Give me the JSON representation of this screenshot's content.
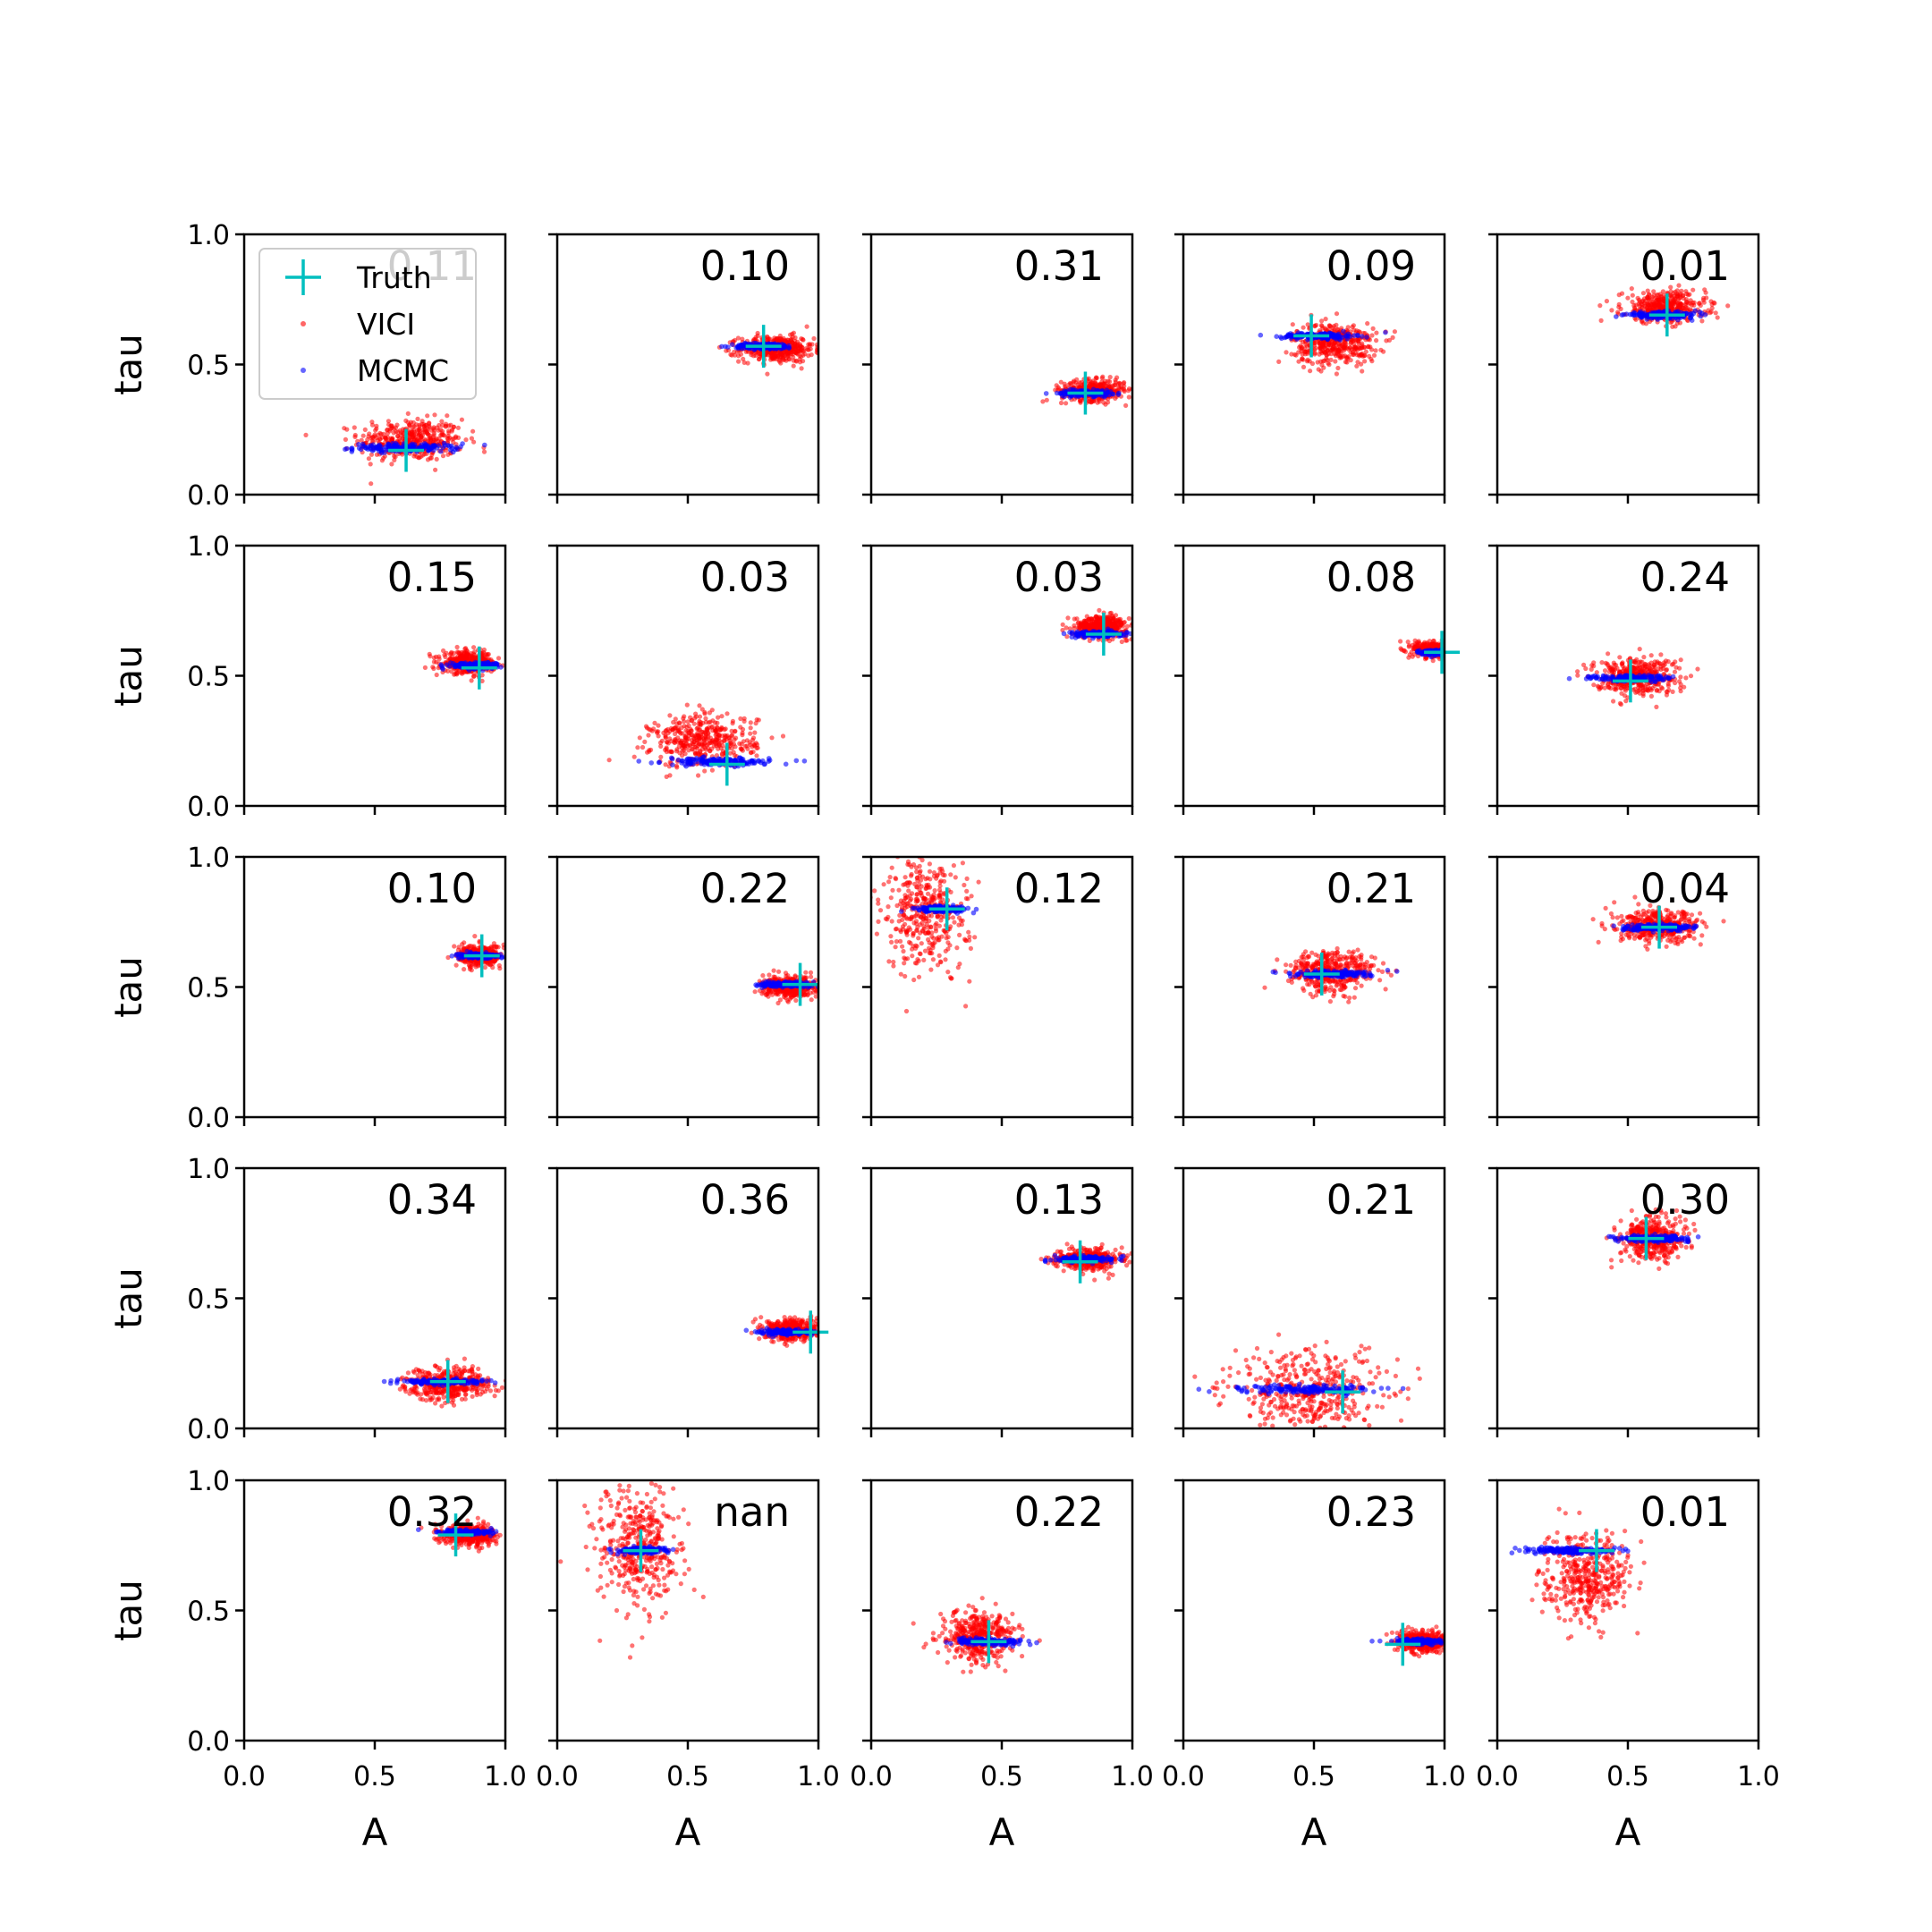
{
  "colors": {
    "truth": "#00bfbf",
    "vici": "#ff0000",
    "mcmc": "#0000ff",
    "frame": "#000000"
  },
  "chart_data": {
    "type": "scatter",
    "layout": "5x5 grid of small-multiple panels",
    "xlabel": "A",
    "ylabel": "tau",
    "xlim": [
      0.0,
      1.0
    ],
    "ylim": [
      0.0,
      1.0
    ],
    "x_ticks": [
      "0.0",
      "0.5",
      "1.0"
    ],
    "y_ticks": [
      "0.0",
      "0.5",
      "1.0"
    ],
    "legend": {
      "placement": "upper-left of first panel",
      "entries": [
        {
          "label": "Truth",
          "marker": "plus"
        },
        {
          "label": "VICI",
          "marker": "dot"
        },
        {
          "label": "MCMC",
          "marker": "dot"
        }
      ]
    },
    "panels": [
      {
        "value": "0.11",
        "truth": [
          0.62,
          0.17
        ],
        "vici": {
          "cx": 0.64,
          "cy": 0.21,
          "sx": 0.1,
          "sy": 0.04
        },
        "mcmc": {
          "cx": 0.62,
          "cy": 0.18,
          "sx": 0.1,
          "sy": 0.008
        }
      },
      {
        "value": "0.10",
        "truth": [
          0.79,
          0.57
        ],
        "vici": {
          "cx": 0.84,
          "cy": 0.56,
          "sx": 0.07,
          "sy": 0.025
        },
        "mcmc": {
          "cx": 0.79,
          "cy": 0.57,
          "sx": 0.06,
          "sy": 0.006
        }
      },
      {
        "value": "0.31",
        "truth": [
          0.82,
          0.39
        ],
        "vici": {
          "cx": 0.85,
          "cy": 0.4,
          "sx": 0.06,
          "sy": 0.02
        },
        "mcmc": {
          "cx": 0.82,
          "cy": 0.39,
          "sx": 0.05,
          "sy": 0.006
        }
      },
      {
        "value": "0.09",
        "truth": [
          0.49,
          0.61
        ],
        "vici": {
          "cx": 0.58,
          "cy": 0.58,
          "sx": 0.08,
          "sy": 0.04
        },
        "mcmc": {
          "cx": 0.52,
          "cy": 0.61,
          "sx": 0.07,
          "sy": 0.006
        }
      },
      {
        "value": "0.01",
        "truth": [
          0.65,
          0.69
        ],
        "vici": {
          "cx": 0.64,
          "cy": 0.72,
          "sx": 0.08,
          "sy": 0.03
        },
        "mcmc": {
          "cx": 0.63,
          "cy": 0.69,
          "sx": 0.07,
          "sy": 0.006
        }
      },
      {
        "value": "0.15",
        "truth": [
          0.9,
          0.53
        ],
        "vici": {
          "cx": 0.86,
          "cy": 0.55,
          "sx": 0.05,
          "sy": 0.02
        },
        "mcmc": {
          "cx": 0.88,
          "cy": 0.54,
          "sx": 0.05,
          "sy": 0.006
        }
      },
      {
        "value": "0.03",
        "truth": [
          0.65,
          0.16
        ],
        "vici": {
          "cx": 0.56,
          "cy": 0.25,
          "sx": 0.1,
          "sy": 0.05
        },
        "mcmc": {
          "cx": 0.62,
          "cy": 0.17,
          "sx": 0.1,
          "sy": 0.007
        }
      },
      {
        "value": "0.03",
        "truth": [
          0.89,
          0.66
        ],
        "vici": {
          "cx": 0.88,
          "cy": 0.69,
          "sx": 0.05,
          "sy": 0.02
        },
        "mcmc": {
          "cx": 0.87,
          "cy": 0.66,
          "sx": 0.05,
          "sy": 0.006
        }
      },
      {
        "value": "0.08",
        "truth": [
          0.99,
          0.59
        ],
        "vici": {
          "cx": 0.96,
          "cy": 0.6,
          "sx": 0.04,
          "sy": 0.015
        },
        "mcmc": {
          "cx": 0.97,
          "cy": 0.59,
          "sx": 0.03,
          "sy": 0.005
        }
      },
      {
        "value": "0.24",
        "truth": [
          0.51,
          0.48
        ],
        "vici": {
          "cx": 0.53,
          "cy": 0.5,
          "sx": 0.08,
          "sy": 0.035
        },
        "mcmc": {
          "cx": 0.51,
          "cy": 0.49,
          "sx": 0.08,
          "sy": 0.006
        }
      },
      {
        "value": "0.10",
        "truth": [
          0.91,
          0.62
        ],
        "vici": {
          "cx": 0.9,
          "cy": 0.62,
          "sx": 0.04,
          "sy": 0.02
        },
        "mcmc": {
          "cx": 0.9,
          "cy": 0.62,
          "sx": 0.04,
          "sy": 0.005
        }
      },
      {
        "value": "0.22",
        "truth": [
          0.93,
          0.51
        ],
        "vici": {
          "cx": 0.89,
          "cy": 0.5,
          "sx": 0.05,
          "sy": 0.02
        },
        "mcmc": {
          "cx": 0.88,
          "cy": 0.51,
          "sx": 0.05,
          "sy": 0.005
        }
      },
      {
        "value": "0.12",
        "truth": [
          0.29,
          0.8
        ],
        "vici": {
          "cx": 0.21,
          "cy": 0.8,
          "sx": 0.08,
          "sy": 0.12
        },
        "mcmc": {
          "cx": 0.27,
          "cy": 0.8,
          "sx": 0.05,
          "sy": 0.006
        }
      },
      {
        "value": "0.21",
        "truth": [
          0.53,
          0.55
        ],
        "vici": {
          "cx": 0.57,
          "cy": 0.56,
          "sx": 0.08,
          "sy": 0.04
        },
        "mcmc": {
          "cx": 0.56,
          "cy": 0.55,
          "sx": 0.08,
          "sy": 0.006
        }
      },
      {
        "value": "0.04",
        "truth": [
          0.62,
          0.73
        ],
        "vici": {
          "cx": 0.62,
          "cy": 0.73,
          "sx": 0.08,
          "sy": 0.03
        },
        "mcmc": {
          "cx": 0.62,
          "cy": 0.73,
          "sx": 0.07,
          "sy": 0.006
        }
      },
      {
        "value": "0.34",
        "truth": [
          0.78,
          0.18
        ],
        "vici": {
          "cx": 0.78,
          "cy": 0.17,
          "sx": 0.08,
          "sy": 0.03
        },
        "mcmc": {
          "cx": 0.76,
          "cy": 0.18,
          "sx": 0.08,
          "sy": 0.005
        }
      },
      {
        "value": "0.36",
        "truth": [
          0.97,
          0.37
        ],
        "vici": {
          "cx": 0.9,
          "cy": 0.38,
          "sx": 0.05,
          "sy": 0.02
        },
        "mcmc": {
          "cx": 0.88,
          "cy": 0.37,
          "sx": 0.05,
          "sy": 0.005
        }
      },
      {
        "value": "0.13",
        "truth": [
          0.8,
          0.64
        ],
        "vici": {
          "cx": 0.83,
          "cy": 0.65,
          "sx": 0.06,
          "sy": 0.02
        },
        "mcmc": {
          "cx": 0.82,
          "cy": 0.65,
          "sx": 0.06,
          "sy": 0.005
        }
      },
      {
        "value": "0.21",
        "truth": [
          0.61,
          0.14
        ],
        "vici": {
          "cx": 0.48,
          "cy": 0.14,
          "sx": 0.15,
          "sy": 0.08
        },
        "mcmc": {
          "cx": 0.48,
          "cy": 0.15,
          "sx": 0.12,
          "sy": 0.008
        }
      },
      {
        "value": "0.30",
        "truth": [
          0.57,
          0.73
        ],
        "vici": {
          "cx": 0.59,
          "cy": 0.73,
          "sx": 0.06,
          "sy": 0.04
        },
        "mcmc": {
          "cx": 0.61,
          "cy": 0.73,
          "sx": 0.07,
          "sy": 0.006
        }
      },
      {
        "value": "0.32",
        "truth": [
          0.81,
          0.79
        ],
        "vici": {
          "cx": 0.86,
          "cy": 0.79,
          "sx": 0.05,
          "sy": 0.02
        },
        "mcmc": {
          "cx": 0.84,
          "cy": 0.8,
          "sx": 0.05,
          "sy": 0.005
        }
      },
      {
        "value": "nan",
        "truth": [
          0.32,
          0.73
        ],
        "vici": {
          "cx": 0.31,
          "cy": 0.73,
          "sx": 0.08,
          "sy": 0.12
        },
        "mcmc": {
          "cx": 0.33,
          "cy": 0.73,
          "sx": 0.05,
          "sy": 0.006
        }
      },
      {
        "value": "0.22",
        "truth": [
          0.45,
          0.38
        ],
        "vici": {
          "cx": 0.41,
          "cy": 0.4,
          "sx": 0.07,
          "sy": 0.05
        },
        "mcmc": {
          "cx": 0.45,
          "cy": 0.38,
          "sx": 0.07,
          "sy": 0.006
        }
      },
      {
        "value": "0.23",
        "truth": [
          0.84,
          0.37
        ],
        "vici": {
          "cx": 0.92,
          "cy": 0.38,
          "sx": 0.05,
          "sy": 0.02
        },
        "mcmc": {
          "cx": 0.9,
          "cy": 0.38,
          "sx": 0.05,
          "sy": 0.005
        }
      },
      {
        "value": "0.01",
        "truth": [
          0.38,
          0.73
        ],
        "vici": {
          "cx": 0.34,
          "cy": 0.63,
          "sx": 0.08,
          "sy": 0.08
        },
        "mcmc": {
          "cx": 0.27,
          "cy": 0.73,
          "sx": 0.08,
          "sy": 0.006
        }
      }
    ]
  }
}
